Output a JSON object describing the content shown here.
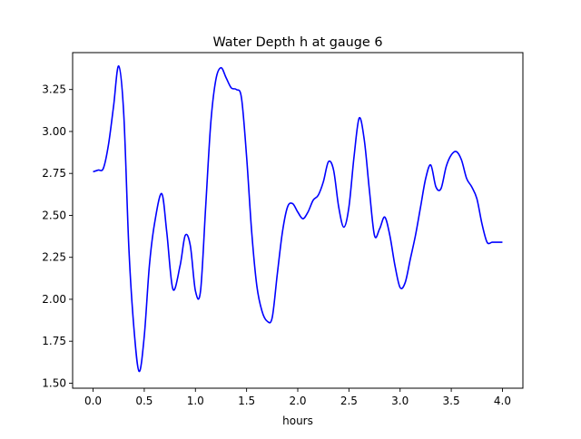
{
  "chart_data": {
    "type": "line",
    "title": "Water Depth h at gauge 6",
    "xlabel": "hours",
    "ylabel": "",
    "xlim": [
      -0.2,
      4.2
    ],
    "ylim": [
      1.47,
      3.47
    ],
    "xticks": [
      0.0,
      0.5,
      1.0,
      1.5,
      2.0,
      2.5,
      3.0,
      3.5,
      4.0
    ],
    "xtick_labels": [
      "0.0",
      "0.5",
      "1.0",
      "1.5",
      "2.0",
      "2.5",
      "3.0",
      "3.5",
      "4.0"
    ],
    "yticks": [
      1.5,
      1.75,
      2.0,
      2.25,
      2.5,
      2.75,
      3.0,
      3.25
    ],
    "ytick_labels": [
      "1.50",
      "1.75",
      "2.00",
      "2.25",
      "2.50",
      "2.75",
      "3.00",
      "3.25"
    ],
    "grid": false,
    "series": [
      {
        "color": "#0000ff",
        "x": [
          0.0,
          0.05,
          0.1,
          0.15,
          0.2,
          0.25,
          0.3,
          0.35,
          0.4,
          0.45,
          0.5,
          0.55,
          0.6,
          0.67,
          0.72,
          0.78,
          0.85,
          0.9,
          0.95,
          1.0,
          1.05,
          1.1,
          1.15,
          1.2,
          1.25,
          1.3,
          1.35,
          1.4,
          1.45,
          1.5,
          1.55,
          1.6,
          1.65,
          1.7,
          1.75,
          1.8,
          1.85,
          1.9,
          1.95,
          2.0,
          2.05,
          2.1,
          2.15,
          2.2,
          2.25,
          2.3,
          2.35,
          2.4,
          2.45,
          2.5,
          2.55,
          2.6,
          2.65,
          2.7,
          2.75,
          2.8,
          2.85,
          2.9,
          2.95,
          3.0,
          3.05,
          3.1,
          3.15,
          3.2,
          3.25,
          3.3,
          3.35,
          3.4,
          3.45,
          3.5,
          3.55,
          3.6,
          3.65,
          3.7,
          3.75,
          3.8,
          3.85,
          3.9,
          3.95,
          4.0
        ],
        "y": [
          2.76,
          2.77,
          2.78,
          2.92,
          3.15,
          3.39,
          3.1,
          2.3,
          1.82,
          1.57,
          1.78,
          2.2,
          2.45,
          2.63,
          2.4,
          2.06,
          2.2,
          2.38,
          2.32,
          2.05,
          2.05,
          2.55,
          3.05,
          3.31,
          3.38,
          3.32,
          3.26,
          3.25,
          3.2,
          2.85,
          2.4,
          2.08,
          1.93,
          1.87,
          1.89,
          2.15,
          2.4,
          2.55,
          2.57,
          2.52,
          2.48,
          2.52,
          2.59,
          2.62,
          2.7,
          2.82,
          2.77,
          2.55,
          2.43,
          2.55,
          2.85,
          3.08,
          2.95,
          2.65,
          2.38,
          2.42,
          2.49,
          2.38,
          2.2,
          2.07,
          2.1,
          2.24,
          2.38,
          2.55,
          2.72,
          2.8,
          2.67,
          2.66,
          2.79,
          2.86,
          2.88,
          2.83,
          2.72,
          2.67,
          2.6,
          2.45,
          2.34,
          2.34,
          2.34,
          2.34
        ]
      }
    ]
  }
}
